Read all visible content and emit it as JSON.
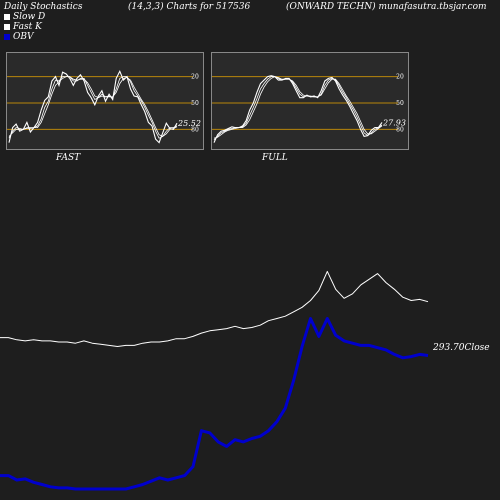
{
  "header": {
    "title": "Daily Stochastics",
    "params": "(14,3,3) Charts for 517536",
    "company": "(ONWARD TECHN) munafasutra.tbsjar.com"
  },
  "legend": [
    {
      "label": "Slow  D",
      "color": "#ffffff"
    },
    {
      "label": "Fast K",
      "color": "#ffffff"
    },
    {
      "label": "OBV",
      "color": "#0000cc"
    }
  ],
  "chart_data": [
    {
      "type": "line",
      "name": "FAST",
      "ylim": [
        0,
        100
      ],
      "hlines": [
        20,
        50,
        80
      ],
      "tick_labels": [
        "80",
        "50",
        "20"
      ],
      "last_value": "25.52",
      "series": [
        {
          "values": [
            5,
            22,
            26,
            18,
            20,
            28,
            17,
            22,
            28,
            42,
            53,
            57,
            75,
            80,
            70,
            85,
            83,
            78,
            70,
            78,
            82,
            75,
            62,
            56,
            48,
            58,
            64,
            52,
            60,
            54,
            78,
            86,
            76,
            80,
            66,
            58,
            57,
            48,
            40,
            28,
            24,
            9,
            5,
            16,
            27,
            21,
            20,
            27
          ]
        },
        {
          "values": [
            10,
            18,
            22,
            21,
            20,
            22,
            22,
            22,
            24,
            32,
            45,
            52,
            66,
            76,
            75,
            80,
            80,
            80,
            75,
            75,
            78,
            78,
            70,
            62,
            54,
            56,
            60,
            57,
            58,
            56,
            66,
            78,
            80,
            80,
            74,
            64,
            58,
            52,
            45,
            36,
            28,
            18,
            10,
            12,
            18,
            22,
            22,
            24
          ]
        },
        {
          "values": [
            12,
            16,
            20,
            20,
            20,
            21,
            21,
            22,
            22,
            28,
            38,
            48,
            60,
            70,
            74,
            78,
            80,
            80,
            77,
            76,
            77,
            77,
            73,
            66,
            58,
            56,
            58,
            57,
            57,
            57,
            62,
            72,
            78,
            79,
            76,
            68,
            61,
            54,
            48,
            40,
            31,
            22,
            14,
            12,
            15,
            20,
            21,
            23
          ]
        }
      ]
    },
    {
      "type": "line",
      "name": "FULL",
      "ylim": [
        0,
        100
      ],
      "hlines": [
        20,
        50,
        80
      ],
      "tick_labels": [
        "80",
        "50",
        "20"
      ],
      "last_value": "27.93",
      "series": [
        {
          "values": [
            5,
            14,
            18,
            19,
            21,
            23,
            22,
            22,
            24,
            30,
            42,
            50,
            62,
            72,
            76,
            80,
            81,
            80,
            76,
            76,
            78,
            78,
            72,
            64,
            56,
            56,
            59,
            57,
            58,
            56,
            64,
            75,
            78,
            79,
            75,
            66,
            59,
            53,
            46,
            38,
            30,
            20,
            12,
            13,
            19,
            22,
            22,
            28
          ]
        },
        {
          "values": [
            8,
            12,
            16,
            18,
            20,
            21,
            22,
            22,
            23,
            27,
            36,
            45,
            55,
            66,
            72,
            77,
            80,
            80,
            78,
            76,
            77,
            77,
            74,
            67,
            60,
            57,
            58,
            57,
            57,
            57,
            60,
            70,
            76,
            78,
            76,
            70,
            62,
            56,
            49,
            42,
            34,
            25,
            16,
            13,
            16,
            20,
            22,
            25
          ]
        },
        {
          "values": [
            10,
            11,
            14,
            17,
            19,
            20,
            21,
            22,
            22,
            25,
            31,
            40,
            49,
            60,
            68,
            74,
            78,
            80,
            79,
            77,
            77,
            77,
            75,
            70,
            63,
            59,
            58,
            58,
            57,
            57,
            59,
            66,
            73,
            77,
            77,
            72,
            65,
            58,
            52,
            45,
            38,
            29,
            20,
            15,
            15,
            18,
            21,
            24
          ]
        }
      ]
    },
    {
      "type": "line",
      "name": "price-obv",
      "close_label": "293.70Close",
      "series": [
        {
          "name": "Price",
          "color": "#ffffff",
          "values": [
            243,
            243,
            241,
            240,
            241,
            240,
            240,
            239,
            239,
            238,
            240,
            238,
            237,
            236,
            235,
            236,
            236,
            238,
            239,
            239,
            240,
            242,
            242,
            244,
            247,
            249,
            250,
            251,
            253,
            251,
            252,
            254,
            258,
            260,
            262,
            266,
            270,
            276,
            285,
            302,
            286,
            278,
            282,
            290,
            295,
            300,
            292,
            286,
            279,
            276,
            277,
            275
          ]
        },
        {
          "name": "OBV",
          "color": "#0000cc",
          "values": [
            120,
            120,
            116,
            117,
            114,
            112,
            110,
            109,
            109,
            108,
            108,
            108,
            108,
            108,
            108,
            108,
            110,
            112,
            115,
            118,
            116,
            118,
            120,
            128,
            160,
            158,
            150,
            146,
            152,
            150,
            153,
            155,
            160,
            168,
            180,
            205,
            235,
            260,
            244,
            260,
            245,
            240,
            238,
            236,
            236,
            234,
            232,
            228,
            225,
            226,
            228,
            227
          ]
        }
      ]
    }
  ],
  "panels": {
    "fast_label": "FAST",
    "full_label": "FULL"
  }
}
